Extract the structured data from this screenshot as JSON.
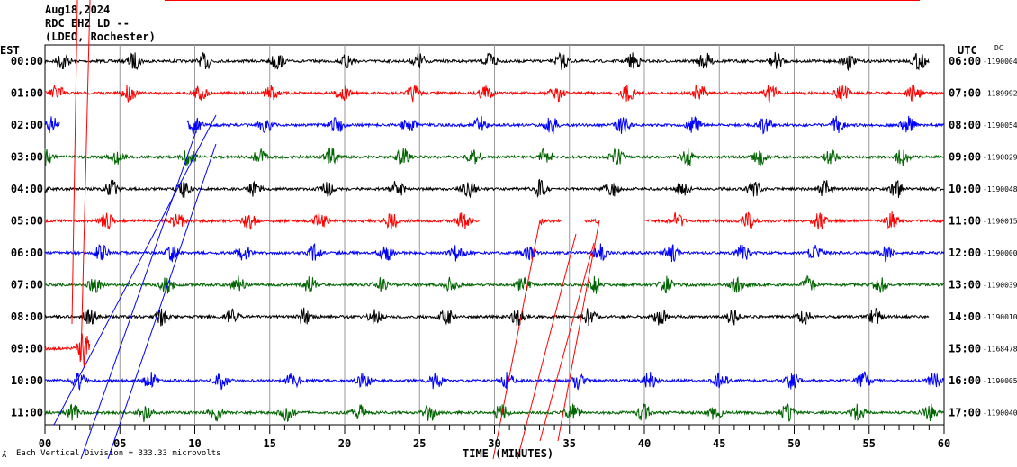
{
  "header": {
    "date": "Aug18,2024",
    "channel": "RDC EHZ LD --",
    "network": "(LDEO, Rochester)"
  },
  "left_axis_label": "EST",
  "right_axis_label": "UTC",
  "dc_label": "DC",
  "footer": {
    "scale_text": "Each Vertical Division =  333.33 microvolts",
    "scale_symbol": "ʎ"
  },
  "chart_data": {
    "type": "line",
    "title": "RDC EHZ LD -- helicorder Aug18,2024",
    "xlabel": "TIME (MINUTES)",
    "xlim": [
      0,
      60
    ],
    "x_ticks": [
      "00",
      "05",
      "10",
      "15",
      "20",
      "25",
      "30",
      "35",
      "40",
      "45",
      "50",
      "55",
      "60"
    ],
    "grid": true,
    "rows": [
      {
        "est": "00:00",
        "utc": "06:00",
        "dc": "-1190004",
        "color": "#000000",
        "segments": [
          [
            0,
            59
          ]
        ]
      },
      {
        "est": "01:00",
        "utc": "07:00",
        "dc": "-1189992",
        "color": "#ff0000",
        "segments": [
          [
            0,
            60
          ]
        ]
      },
      {
        "est": "02:00",
        "utc": "08:00",
        "dc": "-1190054",
        "color": "#0000ff",
        "segments": [
          [
            0,
            1
          ],
          [
            9.5,
            60
          ]
        ]
      },
      {
        "est": "03:00",
        "utc": "09:00",
        "dc": "-1190029",
        "color": "#006400",
        "segments": [
          [
            0,
            60
          ]
        ]
      },
      {
        "est": "04:00",
        "utc": "10:00",
        "dc": "-1190048",
        "color": "#000000",
        "segments": [
          [
            0,
            60
          ]
        ]
      },
      {
        "est": "05:00",
        "utc": "11:00",
        "dc": "-1190015",
        "color": "#ff0000",
        "segments": [
          [
            0,
            29
          ],
          [
            33,
            34.5
          ],
          [
            36,
            37
          ],
          [
            40,
            60
          ]
        ]
      },
      {
        "est": "06:00",
        "utc": "12:00",
        "dc": "-1190000",
        "color": "#0000ff",
        "segments": [
          [
            0,
            60
          ]
        ]
      },
      {
        "est": "07:00",
        "utc": "13:00",
        "dc": "-1190039",
        "color": "#006400",
        "segments": [
          [
            0,
            60
          ]
        ]
      },
      {
        "est": "08:00",
        "utc": "14:00",
        "dc": "-1190010",
        "color": "#000000",
        "segments": [
          [
            0,
            59
          ]
        ]
      },
      {
        "est": "09:00",
        "utc": "15:00",
        "dc": "-1168478",
        "color": "#ff0000",
        "segments": [
          [
            0,
            3
          ]
        ]
      },
      {
        "est": "10:00",
        "utc": "16:00",
        "dc": "-1190005",
        "color": "#0000ff",
        "segments": [
          [
            0,
            60
          ]
        ]
      },
      {
        "est": "11:00",
        "utc": "17:00",
        "dc": "-1190040",
        "color": "#006400",
        "segments": [
          [
            0,
            60
          ]
        ]
      }
    ]
  }
}
